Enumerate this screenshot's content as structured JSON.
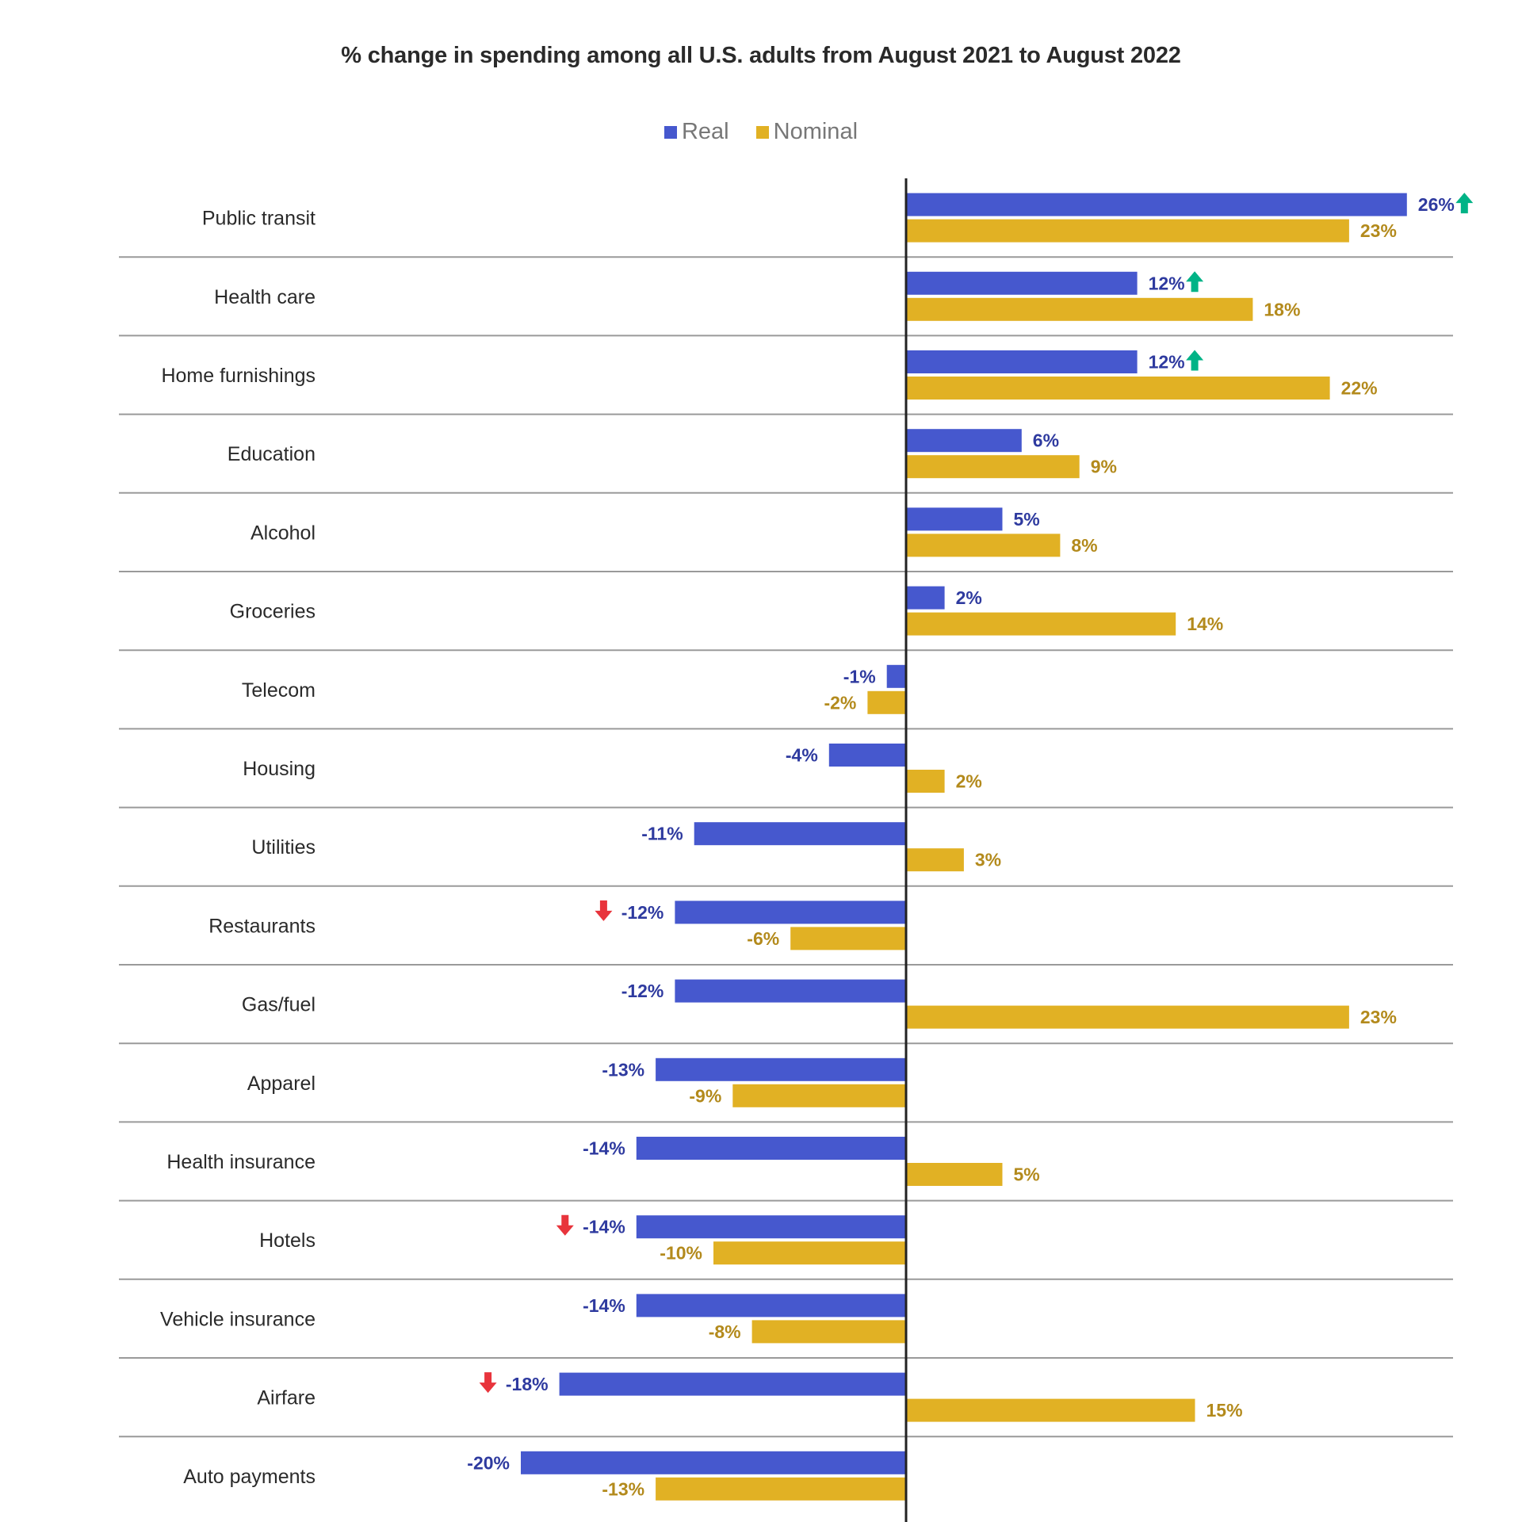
{
  "chart_data": {
    "type": "bar",
    "orientation": "horizontal",
    "title": "% change in spending among all U.S. adults from August 2021 to August 2022",
    "xlabel": "",
    "ylabel": "",
    "xlim": [
      -22,
      28
    ],
    "grid": "horizontal separators between categories",
    "legend_position": "top-center",
    "categories": [
      "Public transit",
      "Health care",
      "Home furnishings",
      "Education",
      "Alcohol",
      "Groceries",
      "Telecom",
      "Housing",
      "Utilities",
      "Restaurants",
      "Gas/fuel",
      "Apparel",
      "Health insurance",
      "Hotels",
      "Vehicle insurance",
      "Airfare",
      "Auto payments"
    ],
    "series": [
      {
        "name": "Real",
        "color": "#4658CE",
        "label_color": "#2E3A9F",
        "values": [
          26,
          12,
          12,
          6,
          5,
          2,
          -1,
          -4,
          -11,
          -12,
          -12,
          -13,
          -14,
          -14,
          -14,
          -18,
          -20
        ]
      },
      {
        "name": "Nominal",
        "color": "#E1B124",
        "label_color": "#B38A1C",
        "values": [
          23,
          18,
          22,
          9,
          8,
          14,
          -2,
          2,
          3,
          -6,
          23,
          -9,
          5,
          -10,
          -8,
          15,
          -13
        ]
      }
    ],
    "value_format": "{v}%",
    "annotations": [
      {
        "category": "Public transit",
        "series": "Real",
        "icon": "arrow-up-icon",
        "color": "#00B386"
      },
      {
        "category": "Health care",
        "series": "Real",
        "icon": "arrow-up-icon",
        "color": "#00B386"
      },
      {
        "category": "Home furnishings",
        "series": "Real",
        "icon": "arrow-up-icon",
        "color": "#00B386"
      },
      {
        "category": "Restaurants",
        "series": "Real",
        "icon": "arrow-down-icon",
        "color": "#E8343C"
      },
      {
        "category": "Hotels",
        "series": "Real",
        "icon": "arrow-down-icon",
        "color": "#E8343C"
      },
      {
        "category": "Airfare",
        "series": "Real",
        "icon": "arrow-down-icon",
        "color": "#E8343C"
      }
    ]
  },
  "legend": {
    "real_label": "Real",
    "nominal_label": "Nominal",
    "real_color": "#4658CE",
    "nominal_color": "#E1B124"
  }
}
